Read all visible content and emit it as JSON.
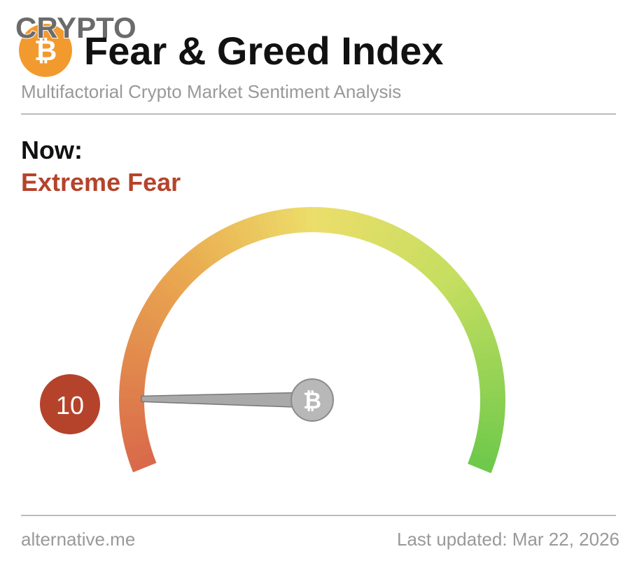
{
  "chart_data": {
    "type": "gauge",
    "brand": "CRYPTO",
    "title": "Fear & Greed Index",
    "subtitle": "Multifactorial Crypto Market Sentiment Analysis",
    "label": "Now:",
    "classification": "Extreme Fear",
    "value": 10,
    "ylim": [
      0,
      100
    ],
    "color": "#b5432b",
    "source": "alternative.me",
    "updated": "Last updated: Mar 22, 2026"
  }
}
